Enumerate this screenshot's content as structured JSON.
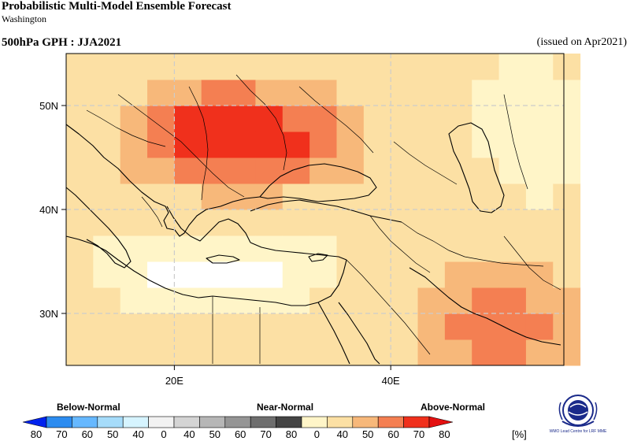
{
  "header": {
    "title": "Probabilistic Multi-Model Ensemble Forecast",
    "subtitle": "Washington",
    "variable": "500hPa GPH : JJA2021",
    "issued": "(issued on Apr2021)"
  },
  "map": {
    "lon_range": [
      10,
      56
    ],
    "lat_range": [
      25,
      55
    ],
    "lon_ticks": [
      {
        "value": 20,
        "label": "20E"
      },
      {
        "value": 40,
        "label": "40E"
      }
    ],
    "lat_ticks": [
      {
        "value": 50,
        "label": "50N"
      },
      {
        "value": 40,
        "label": "40N"
      },
      {
        "value": 30,
        "label": "30N"
      }
    ],
    "grid": "dashed",
    "cell_size_deg": 2.5
  },
  "legend": {
    "below_label": "Below-Normal",
    "near_label": "Near-Normal",
    "above_label": "Above-Normal",
    "unit": "[%]",
    "tick_labels": [
      "80",
      "70",
      "60",
      "50",
      "40",
      "0",
      "40",
      "50",
      "60",
      "70",
      "80",
      "0",
      "40",
      "50",
      "60",
      "70",
      "80"
    ],
    "colors": {
      "below": [
        "#0022ee",
        "#2c8cf0",
        "#66b8ff",
        "#a6dcfa",
        "#d6f4ff"
      ],
      "near": [
        "#f2f2f2",
        "#d4d4d4",
        "#b6b6b6",
        "#959595",
        "#6e6e6e",
        "#444444"
      ],
      "above": [
        "#fff5c8",
        "#fce0a4",
        "#f7b87a",
        "#f47f52",
        "#f0301c",
        "#e41010"
      ]
    }
  },
  "logo": {
    "text": "WMO Lead Centre for LRF MME"
  }
}
